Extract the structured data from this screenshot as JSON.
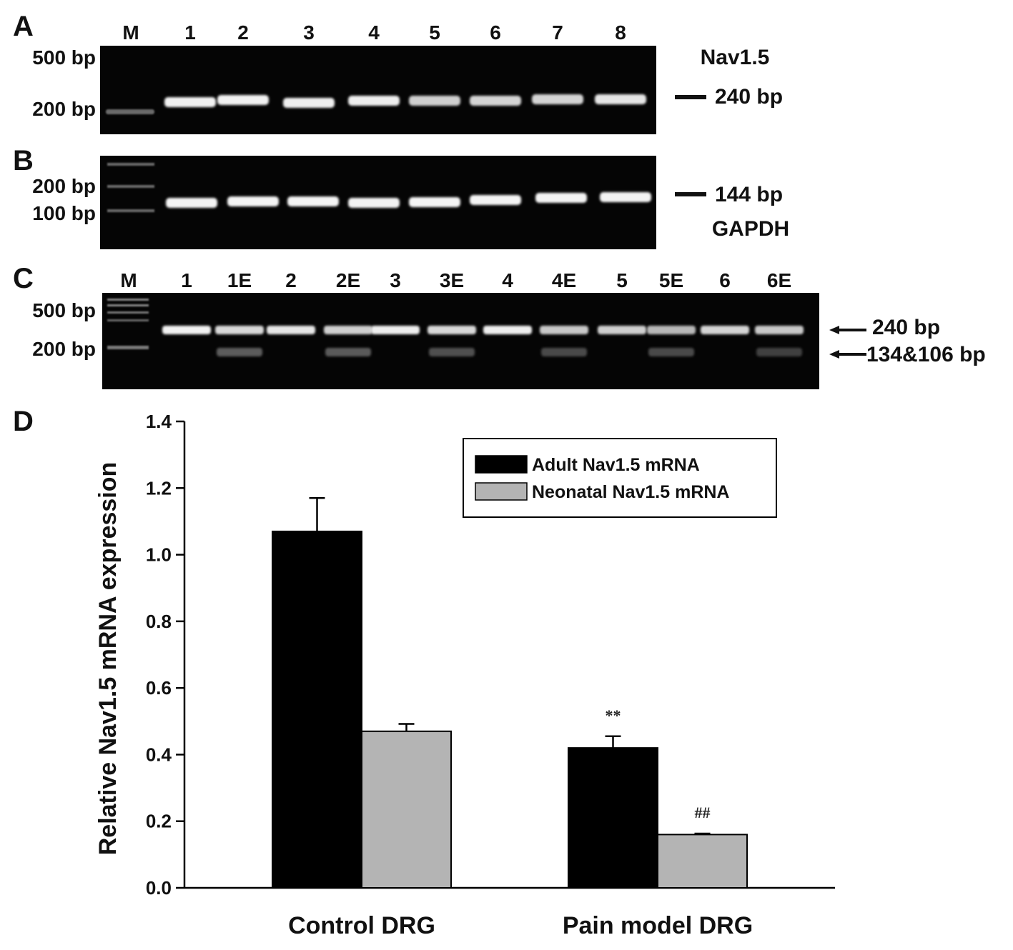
{
  "panels": {
    "a": {
      "letter": "A",
      "marker_label": "M",
      "lane_labels": [
        "1",
        "2",
        "3",
        "4",
        "5",
        "6",
        "7",
        "8"
      ],
      "ladder_labels": [
        "500 bp",
        "200 bp"
      ],
      "gene_label": "Nav1.5",
      "band_label": "240 bp"
    },
    "b": {
      "letter": "B",
      "ladder_labels": [
        "200 bp",
        "100 bp"
      ],
      "band_label": "144 bp",
      "gene_label": "GAPDH"
    },
    "c": {
      "letter": "C",
      "marker_label": "M",
      "lane_labels": [
        "1",
        "1E",
        "2",
        "2E",
        "3",
        "3E",
        "4",
        "4E",
        "5",
        "5E",
        "6",
        "6E"
      ],
      "ladder_labels": [
        "500 bp",
        "200 bp"
      ],
      "band_labels": [
        "240 bp",
        "134&106 bp"
      ]
    },
    "d": {
      "letter": "D"
    }
  },
  "chart_data": {
    "type": "bar",
    "categories": [
      "Control DRG",
      "Pain model DRG"
    ],
    "series": [
      {
        "name": "Adult Nav1.5 mRNA",
        "values": [
          1.07,
          0.42
        ],
        "errors": [
          0.1,
          0.035
        ],
        "color": "#000000"
      },
      {
        "name": "Neonatal Nav1.5 mRNA",
        "values": [
          0.47,
          0.16
        ],
        "errors": [
          0.022,
          0.003
        ],
        "color": "#b4b4b4"
      }
    ],
    "annotations": [
      {
        "series": 0,
        "category": 1,
        "text": "**"
      },
      {
        "series": 1,
        "category": 1,
        "text": "##"
      }
    ],
    "ylabel": "Relative Nav1.5 mRNA expression",
    "xlabel": "",
    "ylim": [
      0,
      1.4
    ],
    "yticks": [
      "0.0",
      "0.2",
      "0.4",
      "0.6",
      "0.8",
      "1.0",
      "1.2",
      "1.4"
    ],
    "legend_position": "top-right",
    "grid": false
  }
}
